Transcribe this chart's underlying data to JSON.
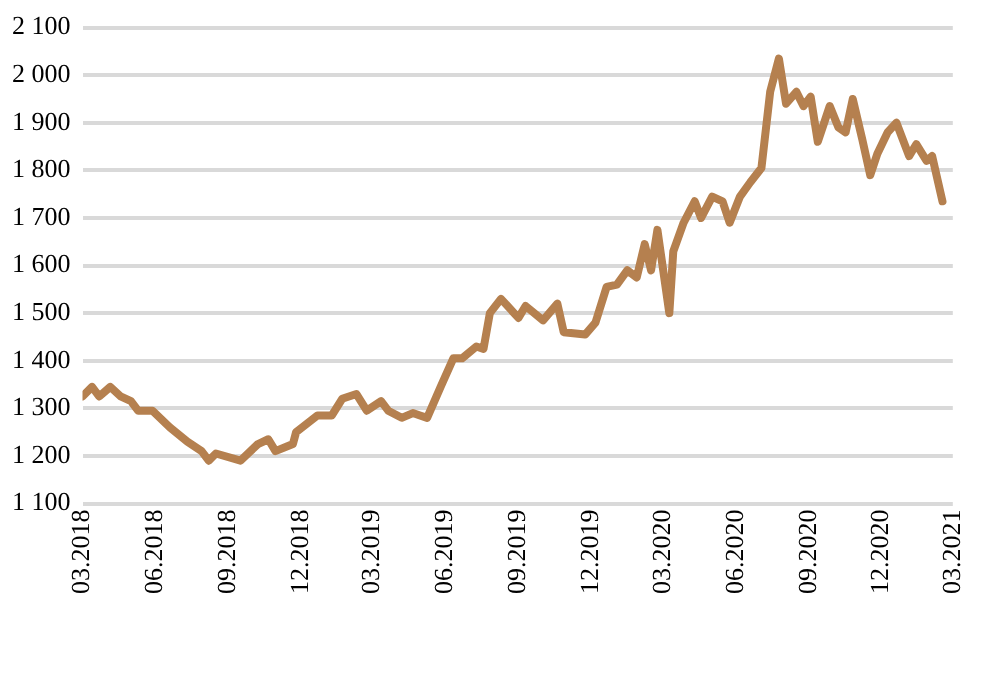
{
  "chart_data": {
    "type": "line",
    "grid": "y",
    "marker": "none",
    "line_style": "solid",
    "xlim": [
      "2018-03-01",
      "2021-03-01"
    ],
    "xticks": [
      {
        "value": "2018-03-01",
        "label": "03.2018"
      },
      {
        "value": "2018-06-01",
        "label": "06.2018"
      },
      {
        "value": "2018-09-01",
        "label": "09.2018"
      },
      {
        "value": "2018-12-01",
        "label": "12.2018"
      },
      {
        "value": "2019-03-01",
        "label": "03.2019"
      },
      {
        "value": "2019-06-01",
        "label": "06.2019"
      },
      {
        "value": "2019-09-01",
        "label": "09.2019"
      },
      {
        "value": "2019-12-01",
        "label": "12.2019"
      },
      {
        "value": "2020-03-01",
        "label": "03.2020"
      },
      {
        "value": "2020-06-01",
        "label": "06.2020"
      },
      {
        "value": "2020-09-01",
        "label": "09.2020"
      },
      {
        "value": "2020-12-01",
        "label": "12.2020"
      },
      {
        "value": "2021-03-01",
        "label": "03.2021"
      }
    ],
    "ylim": [
      1100,
      2100
    ],
    "yticks": [
      {
        "value": 1100,
        "label": "1 100"
      },
      {
        "value": 1200,
        "label": "1 200"
      },
      {
        "value": 1300,
        "label": "1 300"
      },
      {
        "value": 1400,
        "label": "1 400"
      },
      {
        "value": 1500,
        "label": "1 500"
      },
      {
        "value": 1600,
        "label": "1 600"
      },
      {
        "value": 1700,
        "label": "1 700"
      },
      {
        "value": 1800,
        "label": "1 800"
      },
      {
        "value": 1900,
        "label": "1 900"
      },
      {
        "value": 2000,
        "label": "2 000"
      },
      {
        "value": 2100,
        "label": "2 100"
      }
    ],
    "x": [
      "2018-03-01",
      "2018-03-13",
      "2018-03-22",
      "2018-04-05",
      "2018-04-18",
      "2018-05-01",
      "2018-05-10",
      "2018-05-28",
      "2018-06-19",
      "2018-07-11",
      "2018-07-29",
      "2018-08-07",
      "2018-08-16",
      "2018-09-16",
      "2018-10-08",
      "2018-10-21",
      "2018-10-30",
      "2018-11-21",
      "2018-11-25",
      "2018-12-22",
      "2019-01-09",
      "2019-01-22",
      "2019-02-09",
      "2019-02-22",
      "2019-03-12",
      "2019-03-21",
      "2019-04-07",
      "2019-04-21",
      "2019-04-30",
      "2019-05-09",
      "2019-05-26",
      "2019-06-11",
      "2019-06-22",
      "2019-07-10",
      "2019-07-19",
      "2019-07-27",
      "2019-08-10",
      "2019-09-01",
      "2019-09-10",
      "2019-10-02",
      "2019-10-20",
      "2019-10-28",
      "2019-11-24",
      "2019-12-07",
      "2019-12-21",
      "2020-01-03",
      "2020-01-16",
      "2020-01-28",
      "2020-02-07",
      "2020-02-15",
      "2020-02-23",
      "2020-03-09",
      "2020-03-14",
      "2020-03-27",
      "2020-04-10",
      "2020-04-18",
      "2020-05-02",
      "2020-05-15",
      "2020-05-24",
      "2020-06-06",
      "2020-06-19",
      "2020-07-03",
      "2020-07-14",
      "2020-07-25",
      "2020-08-03",
      "2020-08-16",
      "2020-08-25",
      "2020-09-03",
      "2020-09-12",
      "2020-09-27",
      "2020-10-08",
      "2020-10-17",
      "2020-10-26",
      "2020-11-07",
      "2020-11-17",
      "2020-11-26",
      "2020-12-09",
      "2020-12-20",
      "2021-01-05",
      "2021-01-14",
      "2021-01-27",
      "2021-02-03",
      "2021-02-16"
    ],
    "series": [
      {
        "color": "#b5804f",
        "values": [
          1325,
          1345,
          1325,
          1345,
          1325,
          1315,
          1295,
          1295,
          1260,
          1230,
          1210,
          1190,
          1205,
          1190,
          1225,
          1235,
          1210,
          1225,
          1250,
          1285,
          1285,
          1320,
          1330,
          1295,
          1315,
          1295,
          1280,
          1290,
          1285,
          1280,
          1345,
          1405,
          1405,
          1430,
          1425,
          1500,
          1530,
          1490,
          1515,
          1485,
          1520,
          1460,
          1455,
          1480,
          1555,
          1560,
          1590,
          1575,
          1645,
          1590,
          1675,
          1500,
          1630,
          1690,
          1735,
          1700,
          1745,
          1735,
          1690,
          1745,
          1775,
          1805,
          1965,
          2035,
          1940,
          1965,
          1935,
          1955,
          1860,
          1935,
          1890,
          1880,
          1950,
          1865,
          1790,
          1835,
          1880,
          1900,
          1830,
          1855,
          1820,
          1830,
          1735
        ]
      }
    ]
  }
}
